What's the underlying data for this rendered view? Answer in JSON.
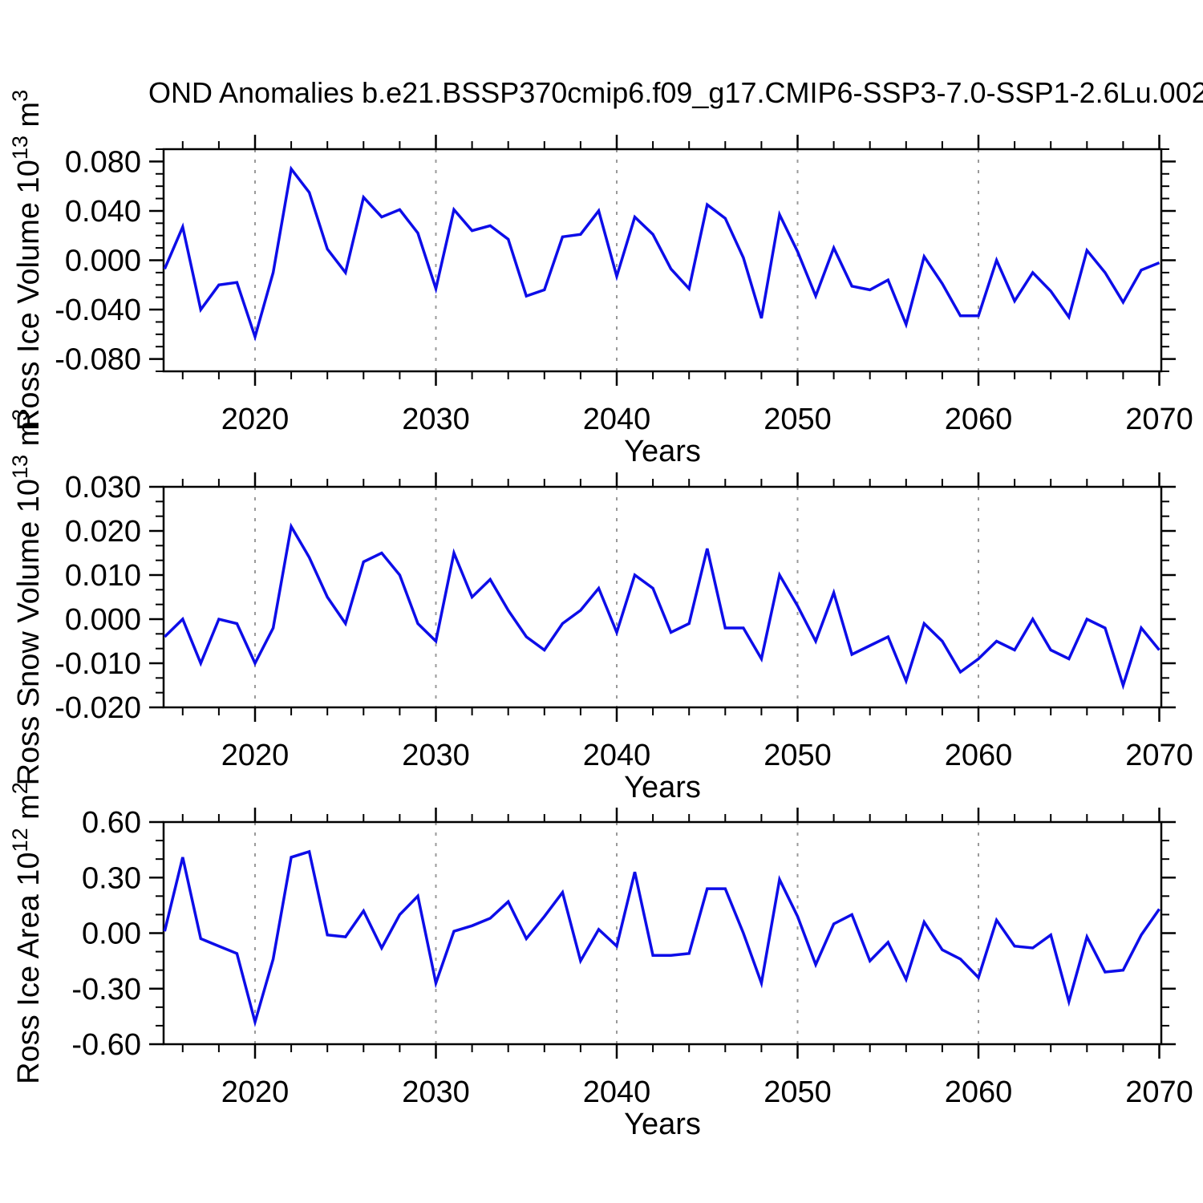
{
  "title": "OND Anomalies b.e21.BSSP370cmip6.f09_g17.CMIP6-SSP3-7.0-SSP1-2.6Lu.002",
  "colors": {
    "line": "#0d0de8",
    "grid": "#9a9a9a",
    "axis": "#000000"
  },
  "x_axis": {
    "label": "Years",
    "tick_years": [
      2020,
      2030,
      2040,
      2050,
      2060,
      2070
    ],
    "tick_labels": [
      "2020",
      "2030",
      "2040",
      "2050",
      "2060",
      "2070"
    ],
    "minor_step_years": 2,
    "gridline_years": [
      2020,
      2030,
      2040,
      2050,
      2060
    ],
    "range": [
      2015,
      2070
    ]
  },
  "chart_data": [
    {
      "type": "line",
      "name": "ross-ice-volume",
      "ylabel": {
        "prefix": "Ross Ice Volume 10",
        "sup": "13",
        "mid": " m",
        "sup2": "3"
      },
      "xlabel": "Years",
      "x_start": 2015,
      "x_step": 1,
      "ylim": [
        -0.09,
        0.09
      ],
      "yticks": [
        {
          "v": 0.08,
          "label": "0.080"
        },
        {
          "v": 0.04,
          "label": "0.040"
        },
        {
          "v": 0.0,
          "label": "0.000"
        },
        {
          "v": -0.04,
          "label": "-0.040"
        },
        {
          "v": -0.08,
          "label": "-0.080"
        }
      ],
      "y_minor_step": 0.01,
      "values": [
        -0.007,
        0.027,
        -0.04,
        -0.02,
        -0.018,
        -0.062,
        -0.01,
        0.074,
        0.055,
        0.009,
        -0.01,
        0.051,
        0.035,
        0.041,
        0.022,
        -0.023,
        0.041,
        0.024,
        0.028,
        0.017,
        -0.029,
        -0.024,
        0.019,
        0.021,
        0.04,
        -0.013,
        0.035,
        0.021,
        -0.007,
        -0.023,
        0.045,
        0.034,
        0.002,
        -0.047,
        0.037,
        0.007,
        -0.029,
        0.01,
        -0.021,
        -0.024,
        -0.016,
        -0.052,
        0.003,
        -0.019,
        -0.045,
        -0.045,
        0.0,
        -0.033,
        -0.01,
        -0.025,
        -0.046,
        0.008,
        -0.01,
        -0.034,
        -0.008,
        -0.002
      ]
    },
    {
      "type": "line",
      "name": "ross-snow-volume",
      "ylabel": {
        "prefix": "Ross Snow Volume 10",
        "sup": "13",
        "mid": " m",
        "sup2": "3"
      },
      "xlabel": "Years",
      "x_start": 2015,
      "x_step": 1,
      "ylim": [
        -0.02,
        0.03
      ],
      "yticks": [
        {
          "v": 0.03,
          "label": "0.030"
        },
        {
          "v": 0.02,
          "label": "0.020"
        },
        {
          "v": 0.01,
          "label": "0.010"
        },
        {
          "v": 0.0,
          "label": "0.000"
        },
        {
          "v": -0.01,
          "label": "-0.010"
        },
        {
          "v": -0.02,
          "label": "-0.020"
        }
      ],
      "y_minor_step": 0.0033333,
      "values": [
        -0.004,
        0.0,
        -0.01,
        0.0,
        -0.001,
        -0.01,
        -0.002,
        0.021,
        0.014,
        0.005,
        -0.001,
        0.013,
        0.015,
        0.01,
        -0.001,
        -0.005,
        0.015,
        0.005,
        0.009,
        0.002,
        -0.004,
        -0.007,
        -0.001,
        0.002,
        0.007,
        -0.003,
        0.01,
        0.007,
        -0.003,
        -0.001,
        0.016,
        -0.002,
        -0.002,
        -0.009,
        0.01,
        0.003,
        -0.005,
        0.006,
        -0.008,
        -0.006,
        -0.004,
        -0.014,
        -0.001,
        -0.005,
        -0.012,
        -0.009,
        -0.005,
        -0.007,
        0.0,
        -0.007,
        -0.009,
        0.0,
        -0.002,
        -0.015,
        -0.002,
        -0.007
      ]
    },
    {
      "type": "line",
      "name": "ross-ice-area",
      "ylabel": {
        "prefix": "Ross Ice Area 10",
        "sup": "12",
        "mid": " m",
        "sup2": "2"
      },
      "xlabel": "Years",
      "x_start": 2015,
      "x_step": 1,
      "ylim": [
        -0.6,
        0.6
      ],
      "yticks": [
        {
          "v": 0.6,
          "label": "0.60"
        },
        {
          "v": 0.3,
          "label": "0.30"
        },
        {
          "v": 0.0,
          "label": "0.00"
        },
        {
          "v": -0.3,
          "label": "-0.30"
        },
        {
          "v": -0.6,
          "label": "-0.60"
        }
      ],
      "y_minor_step": 0.1,
      "values": [
        0.01,
        0.41,
        -0.03,
        -0.07,
        -0.11,
        -0.48,
        -0.14,
        0.41,
        0.44,
        -0.01,
        -0.02,
        0.12,
        -0.08,
        0.1,
        0.2,
        -0.27,
        0.01,
        0.04,
        0.08,
        0.17,
        -0.03,
        0.09,
        0.22,
        -0.15,
        0.02,
        -0.07,
        0.33,
        -0.12,
        -0.12,
        -0.11,
        0.24,
        0.24,
        0.0,
        -0.27,
        0.29,
        0.09,
        -0.17,
        0.05,
        0.1,
        -0.15,
        -0.05,
        -0.25,
        0.06,
        -0.09,
        -0.14,
        -0.24,
        0.07,
        -0.07,
        -0.08,
        -0.01,
        -0.37,
        -0.02,
        -0.21,
        -0.2,
        -0.01,
        0.13
      ]
    }
  ]
}
